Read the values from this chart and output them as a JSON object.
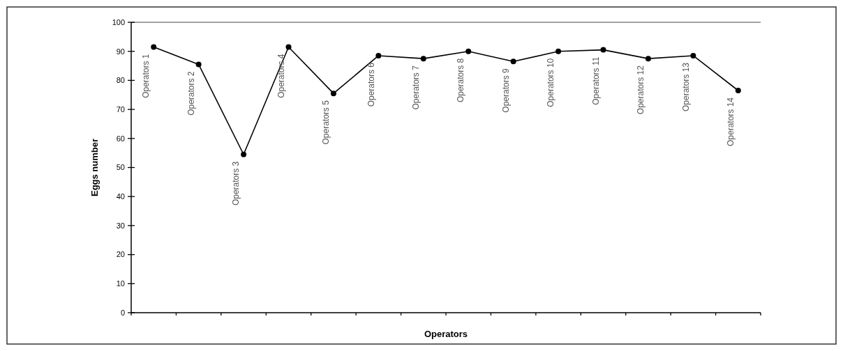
{
  "chart_data": {
    "type": "line",
    "xlabel": "Operators",
    "ylabel": "Eggs number",
    "categories": [
      "Operators 1",
      "Operators 2",
      "Operators 3",
      "Operators 4",
      "Operators 5",
      "Operators 6",
      "Operators 7",
      "Operators 8",
      "Operators 9",
      "Operators 10",
      "Operators 11",
      "Operators 12",
      "Operators 13",
      "Operators 14"
    ],
    "series": [
      {
        "color": "#000000",
        "values": [
          91.5,
          85.5,
          54.5,
          91.5,
          75.5,
          88.5,
          87.5,
          90,
          86.5,
          90,
          90.5,
          87.5,
          88.5,
          76.5
        ]
      }
    ],
    "ylim": [
      0,
      100
    ],
    "yticks": [
      0,
      10,
      20,
      30,
      40,
      50,
      60,
      70,
      80,
      90,
      100
    ],
    "marker": "circle",
    "line_style": "solid",
    "grid": false
  }
}
